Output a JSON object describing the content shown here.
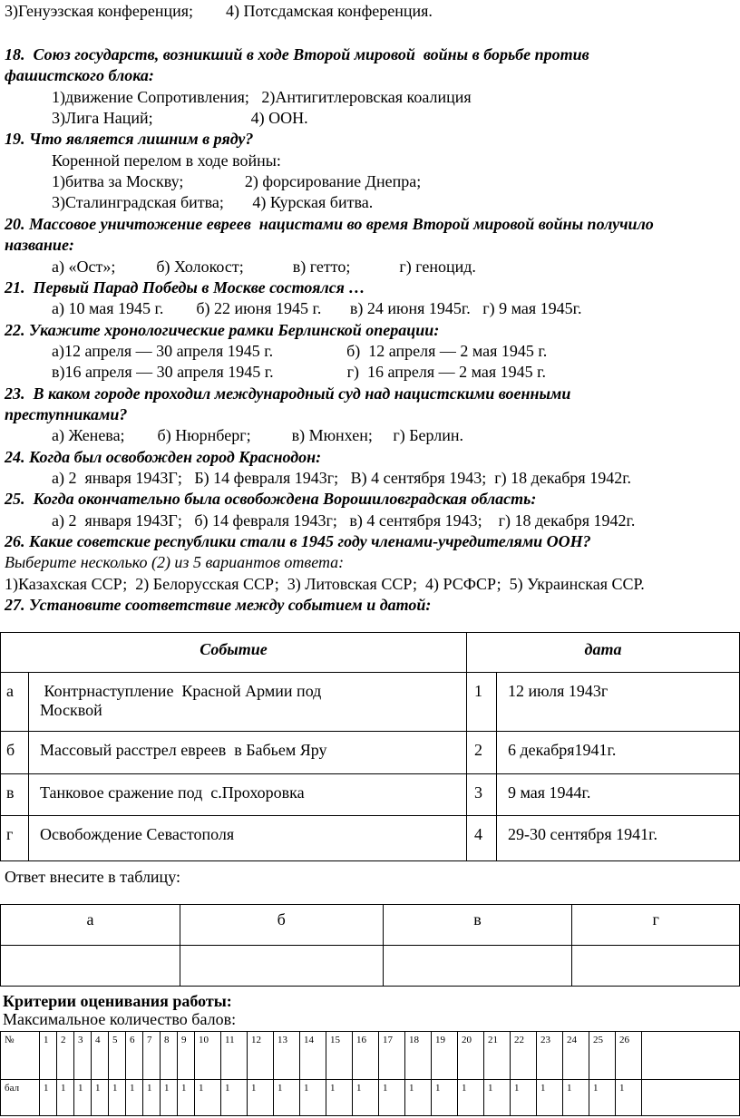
{
  "lines": [
    {
      "text": "3)Генуэзская конференция;        4) Потсдамская конференция.",
      "cls": "plain"
    },
    {
      "text": "18.  Союз государств, возникший в ходе Второй мировой  войны в борьбе против",
      "cls": "q"
    },
    {
      "text": "фашистского блока:",
      "cls": "q"
    },
    {
      "text": "1)движение Сопротивления;   2)Антигитлеровская коалиция",
      "cls": "opt"
    },
    {
      "text": "3)Лига Наций;                        4) ООН.",
      "cls": "opt"
    },
    {
      "text": "19. Что является лишним в ряду?",
      "cls": "q"
    },
    {
      "text": "Коренной перелом в ходе войны:",
      "cls": "opt"
    },
    {
      "text": "1)битва за Москву;               2) форсирование Днепра;",
      "cls": "opt"
    },
    {
      "text": "3)Сталинградская битва;       4) Курская битва.",
      "cls": "opt"
    },
    {
      "text": "20. Массовое уничтожение евреев  нацистами во время Второй мировой войны получило",
      "cls": "q"
    },
    {
      "text": "название:",
      "cls": "q"
    },
    {
      "text": "а) «Ост»;          б) Холокост;            в) гетто;            г) геноцид.",
      "cls": "opt"
    },
    {
      "text": "21.  Первый Парад Победы в Москве состоялся …",
      "cls": "q"
    },
    {
      "text": "а) 10 мая 1945 г.        б) 22 июня 1945 г.       в) 24 июня 1945г.   г) 9 мая 1945г.",
      "cls": "opt"
    },
    {
      "text": "22. Укажите хронологические рамки Берлинской операции:",
      "cls": "q"
    },
    {
      "text": "а)12 апреля — 30 апреля 1945 г.                  б)  12 апреля — 2 мая 1945 г.",
      "cls": "opt"
    },
    {
      "text": "в)16 апреля — 30 апреля 1945 г.                  г)  16 апреля — 2 мая 1945 г.",
      "cls": "opt"
    },
    {
      "text": "23.  В каком городе проходил международный суд над нацистскими военными",
      "cls": "q"
    },
    {
      "text": "преступниками?",
      "cls": "q"
    },
    {
      "text": "а) Женева;        б) Нюрнберг;          в) Мюнхен;     г) Берлин.",
      "cls": "opt"
    },
    {
      "text": "24. Когда был освобожден город Краснодон:",
      "cls": "q"
    },
    {
      "text": "а) 2  января 1943Г;   Б) 14 февраля 1943г;   В) 4 сентября 1943;  г) 18 декабря 1942г.",
      "cls": "opt"
    },
    {
      "text": "25.  Когда окончательно была освобождена Ворошиловградская область:",
      "cls": "q"
    },
    {
      "text": "а) 2  января 1943Г;   б) 14 февраля 1943г;   в) 4 сентября 1943;    г) 18 декабря 1942г.",
      "cls": "opt"
    },
    {
      "text": "26. Какие советские республики стали в 1945 году членами-учредителями ООН?",
      "cls": "q"
    },
    {
      "text": "Выберите несколько (2) из 5 вариантов ответа:",
      "cls": "it"
    },
    {
      "text": "1)Казахская ССР;  2) Белорусская ССР;  3) Литовская ССР;  4) РСФСР;  5) Украинская ССР.",
      "cls": "plain"
    },
    {
      "text": "27. Установите соответствие между событием и датой:",
      "cls": "q"
    }
  ],
  "match_table": {
    "header": [
      "Событие",
      "дата"
    ],
    "rows": [
      {
        "letter": "а",
        "event": " Контрнаступление  Красной Армии под\nМосквой",
        "num": "1",
        "date": "12 июля 1943г"
      },
      {
        "letter": "б",
        "event": "Массовый расстрел евреев  в Бабьем Яру",
        "num": "2",
        "date": "6 декабря1941г."
      },
      {
        "letter": "в",
        "event": "Танковое сражение под  с.Прохоровка",
        "num": "3",
        "date": "9 мая 1944г."
      },
      {
        "letter": "г",
        "event": "Освобождение Севастополя",
        "num": "4",
        "date": "29-30 сентября 1941г."
      }
    ]
  },
  "answer_label": "Ответ внесите в таблицу:",
  "answer_table": [
    "а",
    "б",
    "в",
    "г"
  ],
  "criteria_title": "Критерии оценивания работы:",
  "max_label": "Максимальное количество балов:",
  "score_table": {
    "row1_label": "№",
    "row2_label": "бал",
    "numbers": [
      "1",
      "2",
      "3",
      "4",
      "5",
      "6",
      "7",
      "8",
      "9",
      "10",
      "11",
      "12",
      "13",
      "14",
      "15",
      "16",
      "17",
      "18",
      "19",
      "20",
      "21",
      "22",
      "23",
      "24",
      "25",
      "26"
    ],
    "points": [
      "1",
      "1",
      "1",
      "1",
      "1",
      "1",
      "1",
      "1",
      "1",
      "1",
      "1",
      "1",
      "1",
      "1",
      "1",
      "1",
      "1",
      "1",
      "1",
      "1",
      "1",
      "1",
      "1",
      "1",
      "1",
      "1"
    ]
  }
}
